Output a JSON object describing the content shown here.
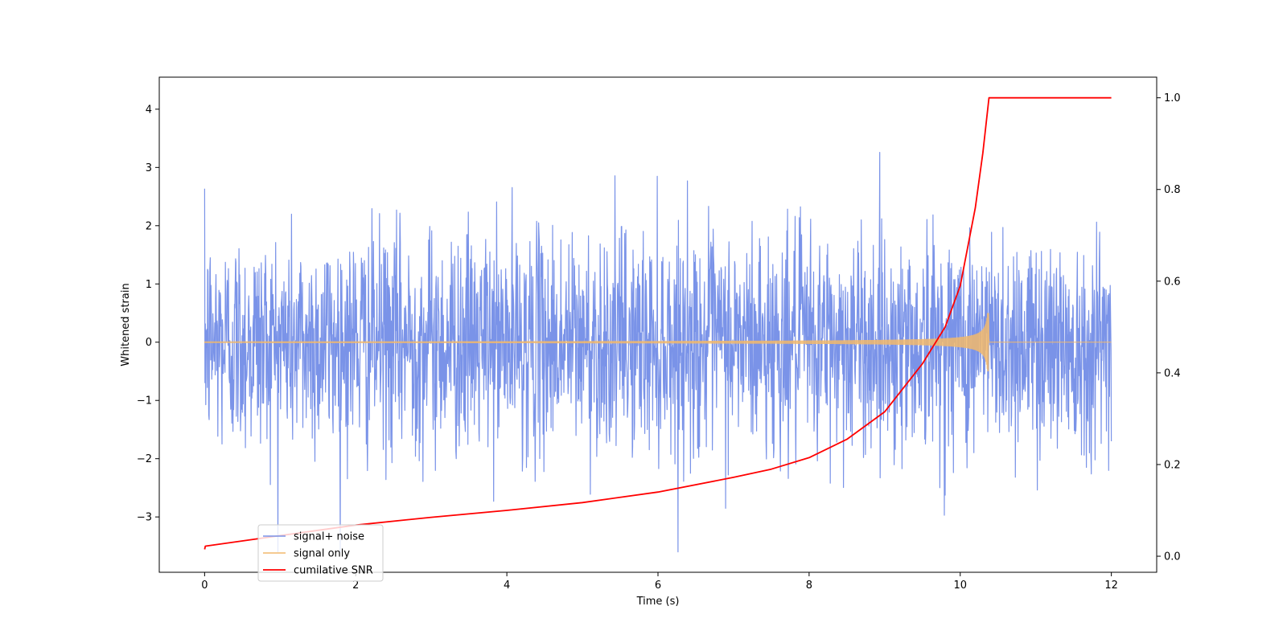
{
  "chart_data": {
    "type": "line",
    "title": "",
    "xlabel": "Time (s)",
    "ylabel": "Whitened strain",
    "y2label": "",
    "xlim": [
      -0.6,
      12.6
    ],
    "ylim": [
      -3.95,
      4.55
    ],
    "y2lim": [
      -0.035,
      1.045
    ],
    "xticks": [
      0,
      2,
      4,
      6,
      8,
      10,
      12
    ],
    "xtick_labels": [
      "0",
      "2",
      "4",
      "6",
      "8",
      "10",
      "12"
    ],
    "yticks": [
      -3,
      -2,
      -1,
      0,
      1,
      2,
      3,
      4
    ],
    "ytick_labels": [
      "−3",
      "−2",
      "−1",
      "0",
      "1",
      "2",
      "3",
      "4"
    ],
    "y2ticks": [
      0.0,
      0.2,
      0.4,
      0.6,
      0.8,
      1.0
    ],
    "y2tick_labels": [
      "0.0",
      "0.2",
      "0.4",
      "0.6",
      "0.8",
      "1.0"
    ],
    "grid": false,
    "legend_position": "bottom-left",
    "series": [
      {
        "name": "signal+ noise",
        "color": "#7a93e8",
        "axis": "left",
        "description_range": [
          -3.6,
          4.15
        ],
        "x": [
          0,
          12
        ],
        "envelope_typical": [
          -1.9,
          1.9
        ]
      },
      {
        "name": "signal only",
        "color": "#f2b96b",
        "axis": "left",
        "x_end_chirp": 10.38,
        "peak_amplitude": 0.5,
        "x": [
          0,
          12
        ]
      },
      {
        "name": "cumilative SNR",
        "color": "#ff0000",
        "axis": "right",
        "x": [
          0.0,
          0.01,
          1,
          2,
          3,
          4,
          5,
          6,
          7,
          7.5,
          8,
          8.5,
          9,
          9.5,
          9.8,
          10.0,
          10.2,
          10.3,
          10.38,
          11,
          12
        ],
        "values": [
          0.015,
          0.022,
          0.045,
          0.068,
          0.085,
          0.1,
          0.117,
          0.14,
          0.172,
          0.19,
          0.215,
          0.255,
          0.315,
          0.42,
          0.5,
          0.59,
          0.76,
          0.88,
          1.0,
          1.0,
          1.0
        ]
      }
    ]
  }
}
